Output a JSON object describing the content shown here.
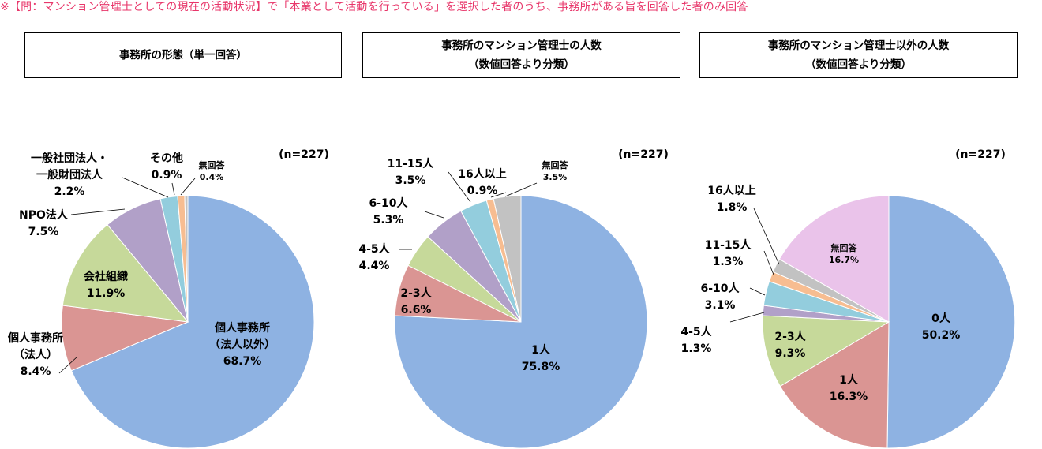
{
  "note": "※【問：マンション管理士としての現在の活動状況】で「本業として活動を行っている」を選択した者のうち、事務所がある旨を回答した者のみ回答",
  "colors": {
    "note": "#e8366a",
    "blue": "#8eb2e2",
    "red": "#da9593",
    "green": "#c6d99a",
    "purple": "#b1a0c8",
    "cyan": "#93cddd",
    "orange": "#f7bd91",
    "gray": "#c2c2c2",
    "pink": "#eac3ea",
    "stroke": "#ffffff"
  },
  "chart_data": [
    {
      "type": "pie",
      "title": "事務所の形態（単一回答）",
      "subtitle": "",
      "n_label": "(n=227)",
      "start": "12 o'clock",
      "direction": "clockwise",
      "slices": [
        {
          "label": "個人事務所\n（法人以外）",
          "value": 68.7,
          "value_label": "68.7%",
          "color": "#8eb2e2"
        },
        {
          "label": "個人事務所\n（法人）",
          "value": 8.4,
          "value_label": "8.4%",
          "color": "#da9593"
        },
        {
          "label": "会社組織",
          "value": 11.9,
          "value_label": "11.9%",
          "color": "#c6d99a"
        },
        {
          "label": "NPO法人",
          "value": 7.5,
          "value_label": "7.5%",
          "color": "#b1a0c8"
        },
        {
          "label": "一般社団法人・\n一般財団法人",
          "value": 2.2,
          "value_label": "2.2%",
          "color": "#93cddd"
        },
        {
          "label": "その他",
          "value": 0.9,
          "value_label": "0.9%",
          "color": "#f7bd91"
        },
        {
          "label": "無回答",
          "value": 0.4,
          "value_label": "0.4%",
          "color": "#c2c2c2"
        }
      ]
    },
    {
      "type": "pie",
      "title": "事務所のマンション管理士の人数",
      "subtitle": "（数値回答より分類）",
      "n_label": "(n=227)",
      "start": "12 o'clock",
      "direction": "clockwise",
      "slices": [
        {
          "label": "1人",
          "value": 75.8,
          "value_label": "75.8%",
          "color": "#8eb2e2"
        },
        {
          "label": "2-3人",
          "value": 6.6,
          "value_label": "6.6%",
          "color": "#da9593"
        },
        {
          "label": "4-5人",
          "value": 4.4,
          "value_label": "4.4%",
          "color": "#c6d99a"
        },
        {
          "label": "6-10人",
          "value": 5.3,
          "value_label": "5.3%",
          "color": "#b1a0c8"
        },
        {
          "label": "11-15人",
          "value": 3.5,
          "value_label": "3.5%",
          "color": "#93cddd"
        },
        {
          "label": "16人以上",
          "value": 0.9,
          "value_label": "0.9%",
          "color": "#f7bd91"
        },
        {
          "label": "無回答",
          "value": 3.5,
          "value_label": "3.5%",
          "color": "#c2c2c2"
        }
      ]
    },
    {
      "type": "pie",
      "title": "事務所のマンション管理士以外の人数",
      "subtitle": "（数値回答より分類）",
      "n_label": "(n=227)",
      "start": "12 o'clock",
      "direction": "clockwise",
      "slices": [
        {
          "label": "0人",
          "value": 50.2,
          "value_label": "50.2%",
          "color": "#8eb2e2"
        },
        {
          "label": "1人",
          "value": 16.3,
          "value_label": "16.3%",
          "color": "#da9593"
        },
        {
          "label": "2-3人",
          "value": 9.3,
          "value_label": "9.3%",
          "color": "#c6d99a"
        },
        {
          "label": "4-5人",
          "value": 1.3,
          "value_label": "1.3%",
          "color": "#b1a0c8"
        },
        {
          "label": "6-10人",
          "value": 3.1,
          "value_label": "3.1%",
          "color": "#93cddd"
        },
        {
          "label": "11-15人",
          "value": 1.3,
          "value_label": "1.3%",
          "color": "#f7bd91"
        },
        {
          "label": "16人以上",
          "value": 1.8,
          "value_label": "1.8%",
          "color": "#c2c2c2"
        },
        {
          "label": "無回答",
          "value": 16.7,
          "value_label": "16.7%",
          "color": "#eac3ea"
        }
      ]
    }
  ]
}
